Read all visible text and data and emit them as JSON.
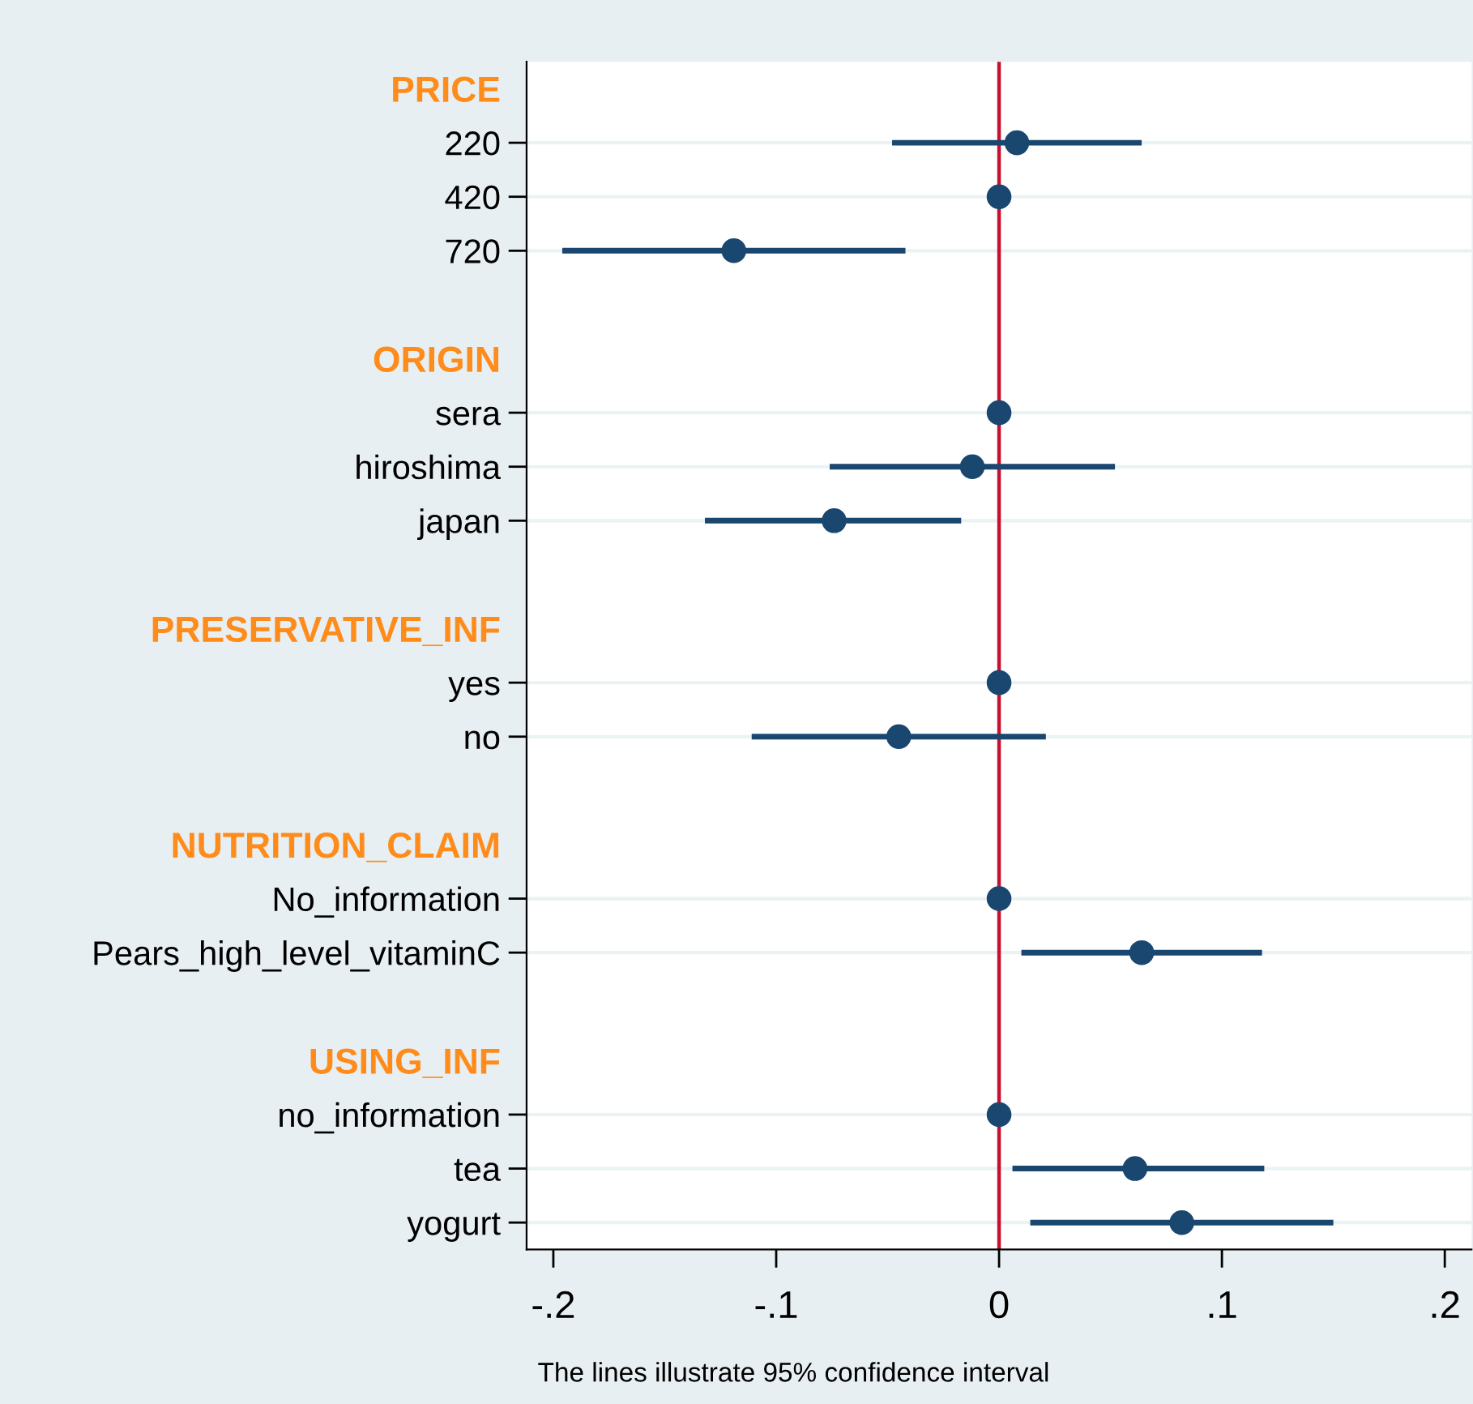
{
  "chart_data": {
    "type": "scatter",
    "orientation": "horizontal",
    "categories": [
      "PRICE",
      "220",
      "420",
      "720",
      null,
      "ORIGIN",
      "sera",
      "hiroshima",
      "japan",
      null,
      "PRESERVATIVE_INF",
      "yes",
      "no",
      null,
      "NUTRITION_CLAIM",
      "No_information",
      "Pears_high_level_vitaminC",
      null,
      "USING_INF",
      "no_information",
      "tea",
      "yogurt"
    ],
    "series": [
      {
        "color": "#1a476f",
        "values": [
          null,
          0.008,
          0,
          -0.119,
          null,
          null,
          0,
          -0.012,
          -0.074,
          null,
          null,
          0,
          -0.045,
          null,
          null,
          0,
          0.064,
          null,
          null,
          0,
          0.061,
          0.082
        ],
        "errors": [
          null,
          [
            -0.048,
            0.064
          ],
          null,
          [
            -0.196,
            -0.042
          ],
          null,
          null,
          null,
          [
            -0.076,
            0.052
          ],
          [
            -0.132,
            -0.017
          ],
          null,
          null,
          null,
          [
            -0.111,
            0.021
          ],
          null,
          null,
          null,
          [
            0.01,
            0.118
          ],
          null,
          null,
          null,
          [
            0.006,
            0.119
          ],
          [
            0.014,
            0.15
          ]
        ]
      }
    ],
    "xlim": [
      -0.212,
      0.212
    ],
    "xticks": [
      {
        "value": -0.2,
        "label": "-.2"
      },
      {
        "value": -0.1,
        "label": "-.1"
      },
      0,
      {
        "value": 0.1,
        "label": ".1"
      },
      {
        "value": 0.2,
        "label": ".2"
      }
    ],
    "ref_lines": [
      {
        "axis": "x",
        "value": 0,
        "color": "#c8102e"
      }
    ],
    "grid": "y",
    "marker": "circle",
    "annotations": [
      "The lines illustrate 95% confidence interval"
    ]
  }
}
